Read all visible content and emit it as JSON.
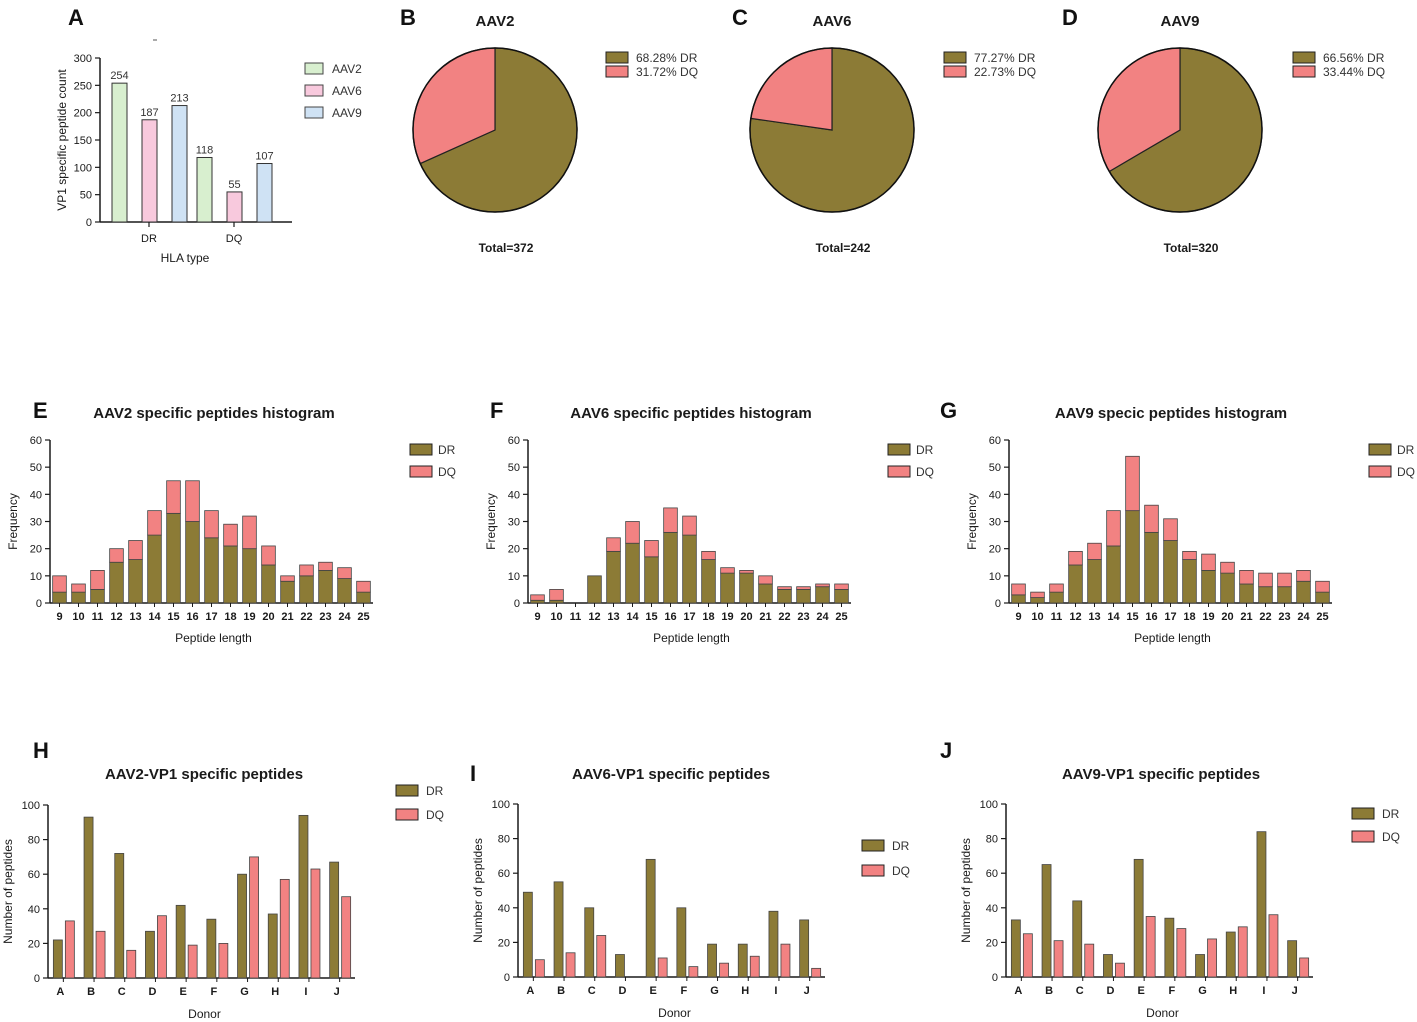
{
  "colors": {
    "DR": "#8c7b36",
    "DQ": "#f28282",
    "AAV2": "#d8efcf",
    "AAV6": "#f8c9dd",
    "AAV9": "#cfe2f4",
    "axis": "#1a1a1a"
  },
  "chart_data": [
    {
      "id": "A",
      "type": "bar",
      "letter": "A",
      "title": "",
      "categories": [
        "DR",
        "DQ"
      ],
      "series": [
        {
          "name": "AAV2",
          "values": [
            254,
            118
          ]
        },
        {
          "name": "AAV6",
          "values": [
            187,
            55
          ]
        },
        {
          "name": "AAV9",
          "values": [
            213,
            107
          ]
        }
      ],
      "value_labels": [
        "254",
        "187",
        "213",
        "118",
        "55",
        "107"
      ],
      "xlabel": "HLA type",
      "ylabel": "VP1 specific peptide count",
      "ylim": [
        0,
        300
      ],
      "yticks": [
        0,
        50,
        100,
        150,
        200,
        250,
        300
      ],
      "legend": [
        "AAV2",
        "AAV6",
        "AAV9"
      ]
    },
    {
      "id": "B",
      "type": "pie",
      "letter": "B",
      "title": "AAV2",
      "slices": [
        {
          "name": "DR",
          "value": 68.28
        },
        {
          "name": "DQ",
          "value": 31.72
        }
      ],
      "legend": [
        "68.28%  DR",
        "31.72%  DQ"
      ],
      "total": "Total=372"
    },
    {
      "id": "C",
      "type": "pie",
      "letter": "C",
      "title": "AAV6",
      "slices": [
        {
          "name": "DR",
          "value": 77.27
        },
        {
          "name": "DQ",
          "value": 22.73
        }
      ],
      "legend": [
        "77.27%  DR",
        "22.73%  DQ"
      ],
      "total": "Total=242"
    },
    {
      "id": "D",
      "type": "pie",
      "letter": "D",
      "title": "AAV9",
      "slices": [
        {
          "name": "DR",
          "value": 66.56
        },
        {
          "name": "DQ",
          "value": 33.44
        }
      ],
      "legend": [
        "66.56%  DR",
        "33.44%  DQ"
      ],
      "total": "Total=320"
    },
    {
      "id": "E",
      "type": "bar",
      "stacked": true,
      "letter": "E",
      "title": "AAV2 specific peptides histogram",
      "categories": [
        "9",
        "10",
        "11",
        "12",
        "13",
        "14",
        "15",
        "16",
        "17",
        "18",
        "19",
        "20",
        "21",
        "22",
        "23",
        "24",
        "25"
      ],
      "series": [
        {
          "name": "DR",
          "values": [
            4,
            4,
            5,
            15,
            16,
            25,
            33,
            30,
            24,
            21,
            20,
            14,
            8,
            10,
            12,
            9,
            4
          ]
        },
        {
          "name": "DQ",
          "values": [
            6,
            3,
            7,
            5,
            7,
            9,
            12,
            15,
            10,
            8,
            12,
            7,
            2,
            4,
            3,
            4,
            4
          ]
        }
      ],
      "xlabel": "Peptide length",
      "ylabel": "Frequency",
      "ylim": [
        0,
        60
      ],
      "yticks": [
        0,
        10,
        20,
        30,
        40,
        50,
        60
      ],
      "legend": [
        "DR",
        "DQ"
      ]
    },
    {
      "id": "F",
      "type": "bar",
      "stacked": true,
      "letter": "F",
      "title": "AAV6 specific peptides histogram",
      "categories": [
        "9",
        "10",
        "11",
        "12",
        "13",
        "14",
        "15",
        "16",
        "17",
        "18",
        "19",
        "20",
        "21",
        "22",
        "23",
        "24",
        "25"
      ],
      "series": [
        {
          "name": "DR",
          "values": [
            1,
            1,
            0,
            10,
            19,
            22,
            17,
            26,
            25,
            16,
            11,
            11,
            7,
            5,
            5,
            6,
            5
          ]
        },
        {
          "name": "DQ",
          "values": [
            2,
            4,
            0,
            0,
            5,
            8,
            6,
            9,
            7,
            3,
            2,
            1,
            3,
            1,
            1,
            1,
            2
          ]
        }
      ],
      "xlabel": "Peptide length",
      "ylabel": "Frequency",
      "ylim": [
        0,
        60
      ],
      "yticks": [
        0,
        10,
        20,
        30,
        40,
        50,
        60
      ],
      "legend": [
        "DR",
        "DQ"
      ]
    },
    {
      "id": "G",
      "type": "bar",
      "stacked": true,
      "letter": "G",
      "title": "AAV9 specic peptides histogram",
      "categories": [
        "9",
        "10",
        "11",
        "12",
        "13",
        "14",
        "15",
        "16",
        "17",
        "18",
        "19",
        "20",
        "21",
        "22",
        "23",
        "24",
        "25"
      ],
      "series": [
        {
          "name": "DR",
          "values": [
            3,
            2,
            4,
            14,
            16,
            21,
            34,
            26,
            23,
            16,
            12,
            11,
            7,
            6,
            6,
            8,
            4
          ]
        },
        {
          "name": "DQ",
          "values": [
            4,
            2,
            3,
            5,
            6,
            13,
            20,
            10,
            8,
            3,
            6,
            4,
            5,
            5,
            5,
            4,
            4
          ]
        }
      ],
      "xlabel": "Peptide length",
      "ylabel": "Frequency",
      "ylim": [
        0,
        60
      ],
      "yticks": [
        0,
        10,
        20,
        30,
        40,
        50,
        60
      ],
      "legend": [
        "DR",
        "DQ"
      ]
    },
    {
      "id": "H",
      "type": "bar",
      "letter": "H",
      "title": "AAV2-VP1 specific peptides",
      "categories": [
        "A",
        "B",
        "C",
        "D",
        "E",
        "F",
        "G",
        "H",
        "I",
        "J"
      ],
      "series": [
        {
          "name": "DR",
          "values": [
            22,
            93,
            72,
            27,
            42,
            34,
            60,
            37,
            94,
            67
          ]
        },
        {
          "name": "DQ",
          "values": [
            33,
            27,
            16,
            36,
            19,
            20,
            70,
            57,
            63,
            47
          ]
        }
      ],
      "xlabel": "Donor",
      "ylabel": "Number of peptides",
      "ylim": [
        0,
        100
      ],
      "yticks": [
        0,
        20,
        40,
        60,
        80,
        100
      ],
      "legend": [
        "DR",
        "DQ"
      ]
    },
    {
      "id": "I",
      "type": "bar",
      "letter": "I",
      "title": "AAV6-VP1 specific peptides",
      "categories": [
        "A",
        "B",
        "C",
        "D",
        "E",
        "F",
        "G",
        "H",
        "I",
        "J"
      ],
      "series": [
        {
          "name": "DR",
          "values": [
            49,
            55,
            40,
            13,
            68,
            40,
            19,
            19,
            38,
            33
          ]
        },
        {
          "name": "DQ",
          "values": [
            10,
            14,
            24,
            0,
            11,
            6,
            8,
            12,
            19,
            5
          ]
        }
      ],
      "xlabel": "Donor",
      "ylabel": "Number of peptides",
      "ylim": [
        0,
        100
      ],
      "yticks": [
        0,
        20,
        40,
        60,
        80,
        100
      ],
      "legend": [
        "DR",
        "DQ"
      ]
    },
    {
      "id": "J",
      "type": "bar",
      "letter": "J",
      "title": "AAV9-VP1 specific peptides",
      "categories": [
        "A",
        "B",
        "C",
        "D",
        "E",
        "F",
        "G",
        "H",
        "I",
        "J"
      ],
      "series": [
        {
          "name": "DR",
          "values": [
            33,
            65,
            44,
            13,
            68,
            34,
            13,
            26,
            84,
            21
          ]
        },
        {
          "name": "DQ",
          "values": [
            25,
            21,
            19,
            8,
            35,
            28,
            22,
            29,
            36,
            11
          ]
        }
      ],
      "xlabel": "Donor",
      "ylabel": "Number of peptides",
      "ylim": [
        0,
        100
      ],
      "yticks": [
        0,
        20,
        40,
        60,
        80,
        100
      ],
      "legend": [
        "DR",
        "DQ"
      ]
    }
  ]
}
